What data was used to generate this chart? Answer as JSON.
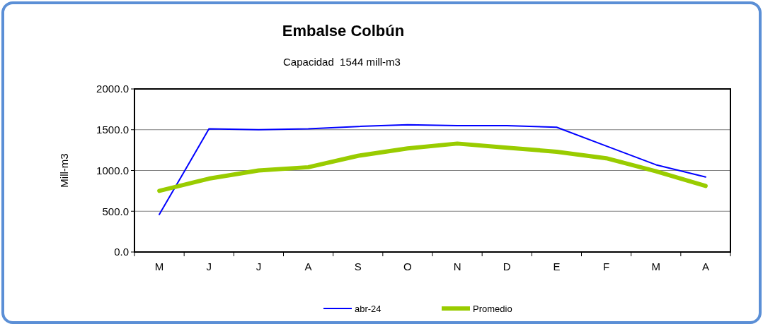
{
  "chart_data": {
    "type": "line",
    "title": "Embalse Colbún",
    "subtitle": "Capacidad  1544 mill-m3",
    "ylabel": "Mill-m3",
    "categories": [
      "M",
      "J",
      "J",
      "A",
      "S",
      "O",
      "N",
      "D",
      "E",
      "F",
      "M",
      "A"
    ],
    "series": [
      {
        "name": "abr-24",
        "color": "#0000ff",
        "values": [
          460,
          1510,
          1500,
          1510,
          1540,
          1560,
          1550,
          1550,
          1530,
          1300,
          1070,
          920
        ]
      },
      {
        "name": "Promedio",
        "color": "#99cc00",
        "values": [
          750,
          900,
          1000,
          1040,
          1180,
          1270,
          1330,
          1280,
          1230,
          1150,
          990,
          810
        ]
      }
    ],
    "ylim": [
      0,
      2000
    ],
    "yticks": [
      {
        "value": 0,
        "label": "0.0"
      },
      {
        "value": 500,
        "label": "500.0"
      },
      {
        "value": 1000,
        "label": "1000.0"
      },
      {
        "value": 1500,
        "label": "1500.0"
      },
      {
        "value": 2000,
        "label": "2000.0"
      }
    ],
    "grid": "y",
    "legend": "bottom",
    "marker": "none",
    "line_style": "solid"
  }
}
